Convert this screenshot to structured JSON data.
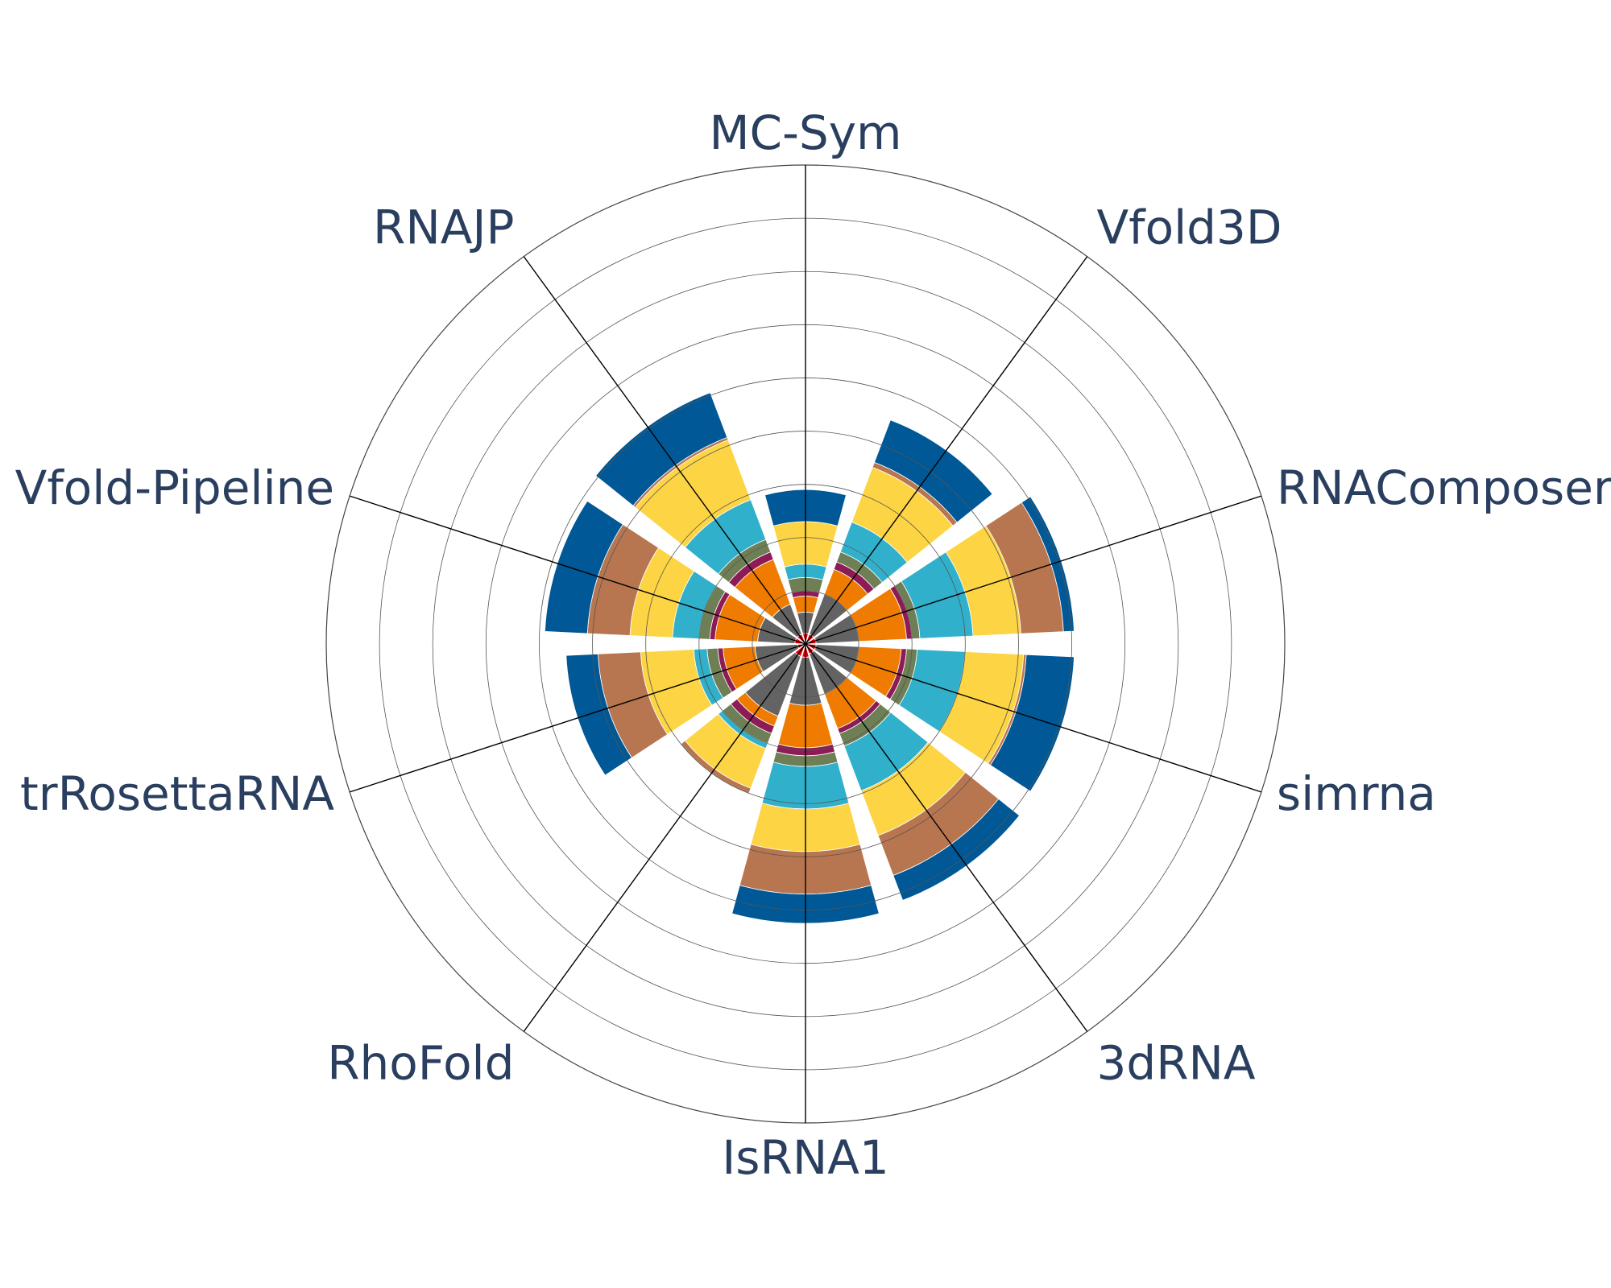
{
  "chart_data": {
    "type": "barpolar",
    "categories": [
      "MC-Sym",
      "Vfold3D",
      "RNAComposer",
      "simrna",
      "3dRNA",
      "IsRNA1",
      "RhoFold",
      "trRosettaRNA",
      "Vfold-Pipeline",
      "RNAJP"
    ],
    "radial_range": [
      0,
      9
    ],
    "grid": true,
    "legend": "none",
    "stack_order_note": "",
    "series": [
      {
        "color": "#e8000b",
        "values": [
          0.2,
          0.2,
          0.2,
          0.2,
          0.2,
          0.25,
          0.25,
          0.15,
          0.2,
          0.2
        ]
      },
      {
        "color": "#636363",
        "values": [
          0.4,
          0.8,
          0.8,
          0.8,
          0.8,
          0.9,
          1.2,
          0.8,
          0.7,
          0.6
        ]
      },
      {
        "color": "#ef7c00",
        "values": [
          0.3,
          0.5,
          0.9,
          0.8,
          0.7,
          0.8,
          0.2,
          0.6,
          0.8,
          0.9
        ]
      },
      {
        "color": "#8c1b56",
        "values": [
          0.1,
          0.15,
          0.1,
          0.1,
          0.1,
          0.15,
          0.15,
          0.1,
          0.1,
          0.15
        ]
      },
      {
        "color": "#6e7f55",
        "values": [
          0.25,
          0.2,
          0.15,
          0.2,
          0.25,
          0.2,
          0.2,
          0.2,
          0.2,
          0.25
        ]
      },
      {
        "color": "#31b0cc",
        "values": [
          0.25,
          0.6,
          1.0,
          0.9,
          0.9,
          0.8,
          0.1,
          0.25,
          0.5,
          0.8
        ]
      },
      {
        "color": "#fdd444",
        "values": [
          0.8,
          1.1,
          0.9,
          1.1,
          0.9,
          0.8,
          0.8,
          1.0,
          0.8,
          1.2
        ]
      },
      {
        "color": "#b87650",
        "values": [
          0.0,
          0.1,
          0.8,
          0.05,
          0.8,
          0.8,
          0.1,
          0.8,
          0.8,
          0.05
        ]
      },
      {
        "color": "#005896",
        "values": [
          0.6,
          0.85,
          0.2,
          0.9,
          0.5,
          0.55,
          0.0,
          0.6,
          0.8,
          0.9
        ]
      }
    ]
  }
}
